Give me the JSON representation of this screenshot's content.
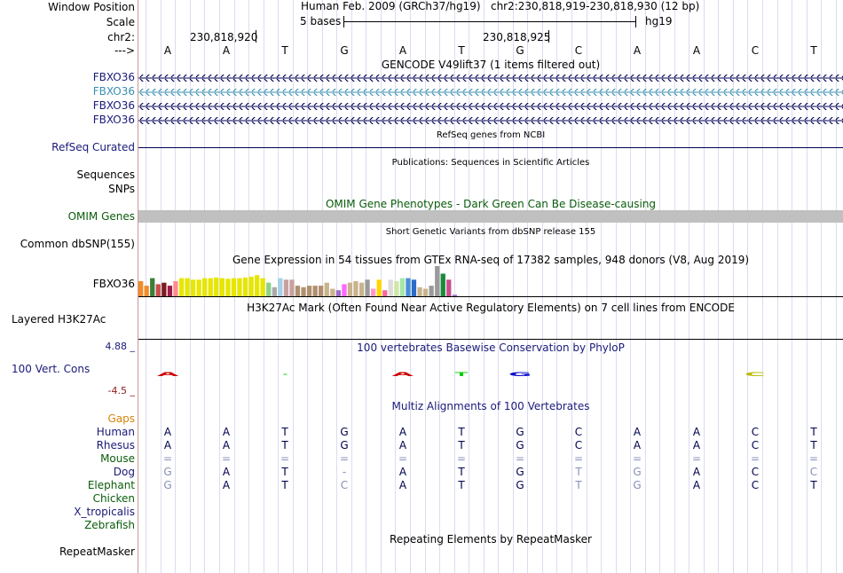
{
  "header": {
    "window_position_label": "Window Position",
    "scale_label": "Scale",
    "chrom_label": "chr2:",
    "arrow_label": "--->",
    "assembly": "Human Feb. 2009 (GRCh37/hg19)",
    "position": "chr2:230,818,919-230,818,930 (12 bp)",
    "scale_text": "5 bases",
    "db": "hg19",
    "coord_left": "230,818,920",
    "coord_right": "230,818,925"
  },
  "bases": [
    "A",
    "A",
    "T",
    "G",
    "A",
    "T",
    "G",
    "C",
    "A",
    "A",
    "C",
    "T"
  ],
  "tracks": {
    "gencode": {
      "title": "GENCODE V49lift37 (1 items filtered out)",
      "items": [
        "FBXO36",
        "FBXO36",
        "FBXO36",
        "FBXO36"
      ]
    },
    "refseq": {
      "title": "RefSeq genes from NCBI",
      "label": "RefSeq Curated"
    },
    "publications": {
      "title": "Publications: Sequences in Scientific Articles",
      "label1": "Sequences",
      "label2": "SNPs"
    },
    "omim": {
      "title": "OMIM Gene Phenotypes - Dark Green Can Be Disease-causing",
      "label": "OMIM Genes"
    },
    "dbsnp": {
      "title": "Short Genetic Variants from dbSNP release 155",
      "label": "Common dbSNP(155)"
    },
    "gtex": {
      "title": "Gene Expression in 54 tissues from GTEx RNA-seq of 17382 samples, 948 donors (V8, Aug 2019)",
      "label": "FBXO36",
      "bars": [
        {
          "v": 0.5,
          "c": "#f28b2c"
        },
        {
          "v": 0.35,
          "c": "#f28b2c"
        },
        {
          "v": 0.6,
          "c": "#3a7f3a"
        },
        {
          "v": 0.4,
          "c": "#c94d4d"
        },
        {
          "v": 0.45,
          "c": "#7b1d1d"
        },
        {
          "v": 0.35,
          "c": "#a01c4a"
        },
        {
          "v": 0.5,
          "c": "#ff8c8c"
        },
        {
          "v": 0.6,
          "c": "#e6e600"
        },
        {
          "v": 0.6,
          "c": "#e6e600"
        },
        {
          "v": 0.55,
          "c": "#e6e600"
        },
        {
          "v": 0.55,
          "c": "#e6e600"
        },
        {
          "v": 0.6,
          "c": "#e6e600"
        },
        {
          "v": 0.6,
          "c": "#e6e600"
        },
        {
          "v": 0.62,
          "c": "#e6e600"
        },
        {
          "v": 0.6,
          "c": "#e6e600"
        },
        {
          "v": 0.58,
          "c": "#e6e600"
        },
        {
          "v": 0.6,
          "c": "#e6e600"
        },
        {
          "v": 0.6,
          "c": "#e6e600"
        },
        {
          "v": 0.62,
          "c": "#e6e600"
        },
        {
          "v": 0.65,
          "c": "#e6e600"
        },
        {
          "v": 0.7,
          "c": "#e6e600"
        },
        {
          "v": 0.6,
          "c": "#e6e600"
        },
        {
          "v": 0.45,
          "c": "#8bd18b"
        },
        {
          "v": 0.3,
          "c": "#aaaaaa"
        },
        {
          "v": 0.6,
          "c": "#a5d0e8"
        },
        {
          "v": 0.55,
          "c": "#c9a0a0"
        },
        {
          "v": 0.55,
          "c": "#c9a0a0"
        },
        {
          "v": 0.35,
          "c": "#b09070"
        },
        {
          "v": 0.3,
          "c": "#b09070"
        },
        {
          "v": 0.35,
          "c": "#b09070"
        },
        {
          "v": 0.35,
          "c": "#b09070"
        },
        {
          "v": 0.35,
          "c": "#b09070"
        },
        {
          "v": 0.45,
          "c": "#c9b38c"
        },
        {
          "v": 0.25,
          "c": "#c9b38c"
        },
        {
          "v": 0.2,
          "c": "#a06cc8"
        },
        {
          "v": 0.4,
          "c": "#ff66ff"
        },
        {
          "v": 0.45,
          "c": "#c9b38c"
        },
        {
          "v": 0.5,
          "c": "#c9b38c"
        },
        {
          "v": 0.45,
          "c": "#c9b38c"
        },
        {
          "v": 0.55,
          "c": "#9a9a9a"
        },
        {
          "v": 0.25,
          "c": "#ff99cc"
        },
        {
          "v": 0.55,
          "c": "#ffd700"
        },
        {
          "v": 0.2,
          "c": "#ff6699"
        },
        {
          "v": 0.55,
          "c": "#dddddd"
        },
        {
          "v": 0.5,
          "c": "#cfe8a8"
        },
        {
          "v": 0.6,
          "c": "#a5e8a5"
        },
        {
          "v": 0.6,
          "c": "#4a90d9"
        },
        {
          "v": 0.55,
          "c": "#2a6cc8"
        },
        {
          "v": 0.3,
          "c": "#c9b38c"
        },
        {
          "v": 0.25,
          "c": "#c9b38c"
        },
        {
          "v": 0.35,
          "c": "#9a9a9a"
        },
        {
          "v": 1.0,
          "c": "#9a9a9a"
        },
        {
          "v": 0.75,
          "c": "#1a8a3a"
        },
        {
          "v": 0.55,
          "c": "#c94d8a"
        },
        {
          "v": 0.05,
          "c": "#a06cc8"
        }
      ]
    },
    "h3k27ac": {
      "title": "H3K27Ac Mark (Often Found Near Active Regulatory Elements) on 7 cell lines from ENCODE",
      "label": "Layered H3K27Ac"
    },
    "phylop": {
      "title": "100 vertebrates Basewise Conservation by PhyloP",
      "label": "100 Vert. Cons",
      "max": "4.88 _",
      "min": "-4.5 _",
      "logos": [
        {
          "idx": 0,
          "letter": "A",
          "color": "#cc0000",
          "w": 0.9
        },
        {
          "idx": 2,
          "letter": "-",
          "color": "#00cc00",
          "w": 0.4
        },
        {
          "idx": 4,
          "letter": "A",
          "color": "#cc0000",
          "w": 0.9
        },
        {
          "idx": 5,
          "letter": "T",
          "color": "#00cc00",
          "w": 0.6
        },
        {
          "idx": 6,
          "letter": "G",
          "color": "#0000cc",
          "w": 0.9
        },
        {
          "idx": 10,
          "letter": "C",
          "color": "#b8b800",
          "w": 0.9
        }
      ]
    },
    "multiz": {
      "title": "Multiz Alignments of 100 Vertebrates",
      "label_gaps": "Gaps",
      "species": [
        {
          "name": "Human",
          "color": "navy",
          "seq": [
            "A",
            "A",
            "T",
            "G",
            "A",
            "T",
            "G",
            "C",
            "A",
            "A",
            "C",
            "T"
          ],
          "dim": []
        },
        {
          "name": "Rhesus",
          "color": "navy",
          "seq": [
            "A",
            "A",
            "T",
            "G",
            "A",
            "T",
            "G",
            "C",
            "A",
            "A",
            "C",
            "T"
          ],
          "dim": []
        },
        {
          "name": "Mouse",
          "color": "green",
          "seq": [
            "=",
            "=",
            "=",
            "=",
            "=",
            "=",
            "=",
            "=",
            "=",
            "=",
            "=",
            "="
          ],
          "dim": [
            0,
            1,
            2,
            3,
            4,
            5,
            6,
            7,
            8,
            9,
            10,
            11
          ]
        },
        {
          "name": "Dog",
          "color": "navy",
          "seq": [
            "G",
            "A",
            "T",
            "-",
            "A",
            "T",
            "G",
            "T",
            "G",
            "A",
            "C",
            "C"
          ],
          "dim": [
            0,
            3,
            7,
            8,
            11
          ]
        },
        {
          "name": "Elephant",
          "color": "green",
          "seq": [
            "G",
            "A",
            "T",
            "C",
            "A",
            "T",
            "G",
            "T",
            "G",
            "A",
            "C",
            "T"
          ],
          "dim": [
            0,
            3,
            7,
            8
          ]
        },
        {
          "name": "Chicken",
          "color": "green",
          "seq": [],
          "dim": []
        },
        {
          "name": "X_tropicalis",
          "color": "navy",
          "seq": [],
          "dim": []
        },
        {
          "name": "Zebrafish",
          "color": "green",
          "seq": [],
          "dim": []
        }
      ]
    },
    "repeatmasker": {
      "title": "Repeating Elements by RepeatMasker",
      "label": "RepeatMasker"
    }
  }
}
